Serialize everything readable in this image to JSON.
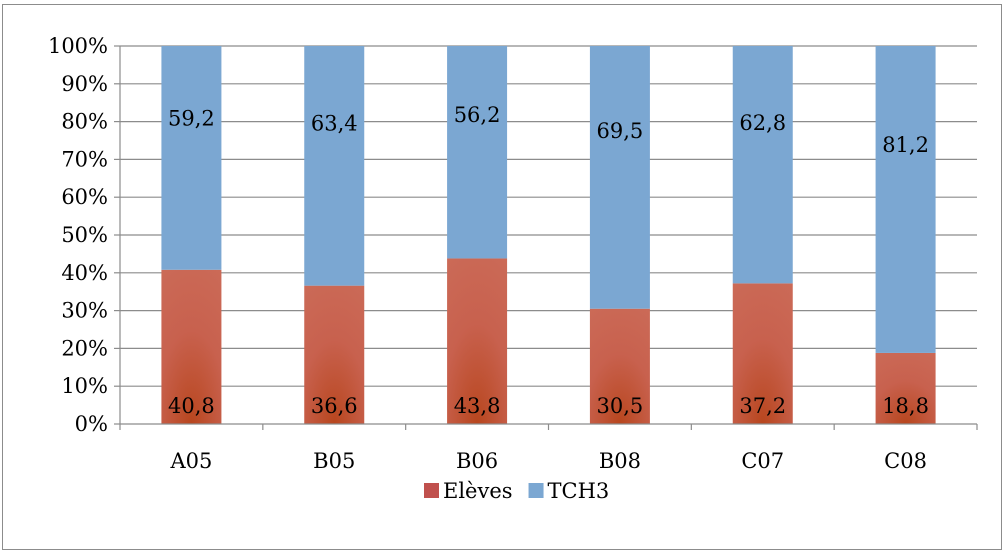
{
  "chart_data": {
    "type": "bar",
    "stacked": true,
    "percent_stacked": true,
    "categories": [
      "A05",
      "B05",
      "B06",
      "B08",
      "C07",
      "C08"
    ],
    "series": [
      {
        "name": "Elèves",
        "values": [
          40.8,
          36.6,
          43.8,
          30.5,
          37.2,
          18.8
        ],
        "color": "#C0504D"
      },
      {
        "name": "TCH3",
        "values": [
          59.2,
          63.4,
          56.2,
          69.5,
          62.8,
          81.2
        ],
        "color": "#7BA7D2"
      }
    ],
    "y_ticks": [
      "0%",
      "10%",
      "20%",
      "30%",
      "40%",
      "50%",
      "60%",
      "70%",
      "80%",
      "90%",
      "100%"
    ],
    "ylim": [
      0,
      100
    ],
    "grid": true,
    "legend": "bottom",
    "data_labels": true
  }
}
